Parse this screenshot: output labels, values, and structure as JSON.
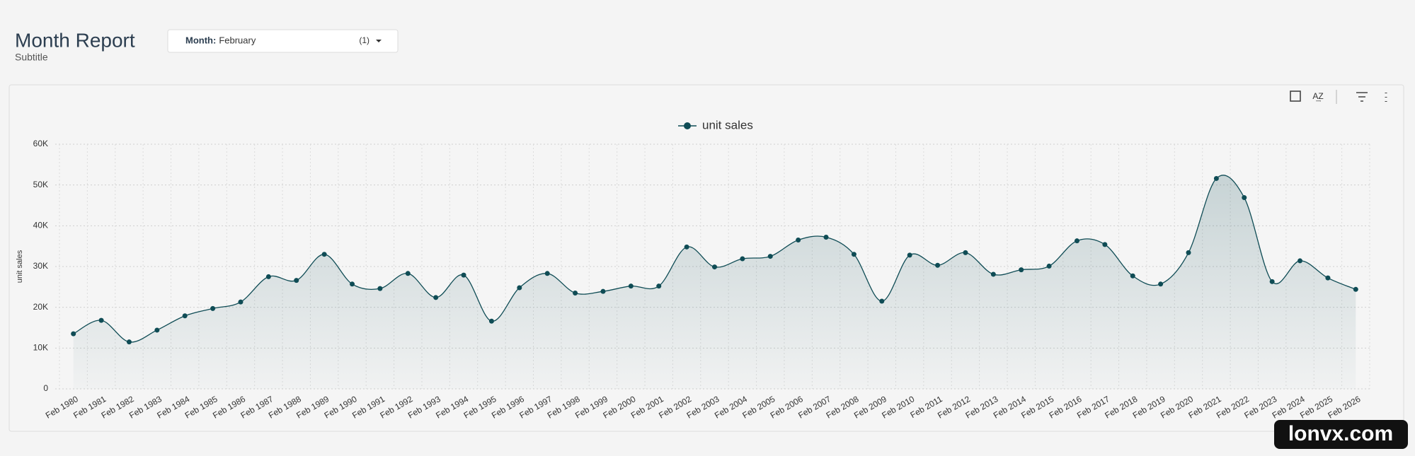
{
  "header": {
    "title": "Month Report",
    "subtitle": "Subtitle"
  },
  "filter": {
    "label": "Month:",
    "value": "February",
    "count": "(1)"
  },
  "watermark": "lonvx.com",
  "chart_data": {
    "type": "line",
    "y_label": "unit sales",
    "categories": [
      "Feb 1980",
      "Feb 1981",
      "Feb 1982",
      "Feb 1983",
      "Feb 1984",
      "Feb 1985",
      "Feb 1986",
      "Feb 1987",
      "Feb 1988",
      "Feb 1989",
      "Feb 1990",
      "Feb 1991",
      "Feb 1992",
      "Feb 1993",
      "Feb 1994",
      "Feb 1995",
      "Feb 1996",
      "Feb 1997",
      "Feb 1998",
      "Feb 1999",
      "Feb 2000",
      "Feb 2001",
      "Feb 2002",
      "Feb 2003",
      "Feb 2004",
      "Feb 2005",
      "Feb 2006",
      "Feb 2007",
      "Feb 2008",
      "Feb 2009",
      "Feb 2010",
      "Feb 2011",
      "Feb 2012",
      "Feb 2013",
      "Feb 2014",
      "Feb 2015",
      "Feb 2016",
      "Feb 2017",
      "Feb 2018",
      "Feb 2019",
      "Feb 2020",
      "Feb 2021",
      "Feb 2022",
      "Feb 2023",
      "Feb 2024",
      "Feb 2025",
      "Feb 2026"
    ],
    "series": [
      {
        "name": "unit sales",
        "color": "#0f4c55",
        "values": [
          13500,
          16800,
          11500,
          14400,
          17900,
          19700,
          21300,
          27500,
          26600,
          33000,
          25700,
          24600,
          28300,
          22400,
          27900,
          16600,
          24800,
          28300,
          23500,
          23900,
          25200,
          25200,
          34800,
          29900,
          31900,
          32500,
          36500,
          37200,
          33000,
          21500,
          32800,
          30300,
          33400,
          28100,
          29200,
          30100,
          36300,
          35400,
          27700,
          25700,
          33400,
          51600,
          46900,
          26300,
          31400,
          27200,
          24400
        ]
      }
    ],
    "ylim": [
      0,
      60000
    ],
    "yticks": [
      0,
      {
        "value": 10000,
        "label": "10K"
      },
      {
        "value": 20000,
        "label": "20K"
      },
      {
        "value": 30000,
        "label": "30K"
      },
      {
        "value": 40000,
        "label": "40K"
      },
      {
        "value": 50000,
        "label": "50K"
      },
      {
        "value": 60000,
        "label": "60K"
      }
    ],
    "grid": true,
    "legend": "top"
  }
}
